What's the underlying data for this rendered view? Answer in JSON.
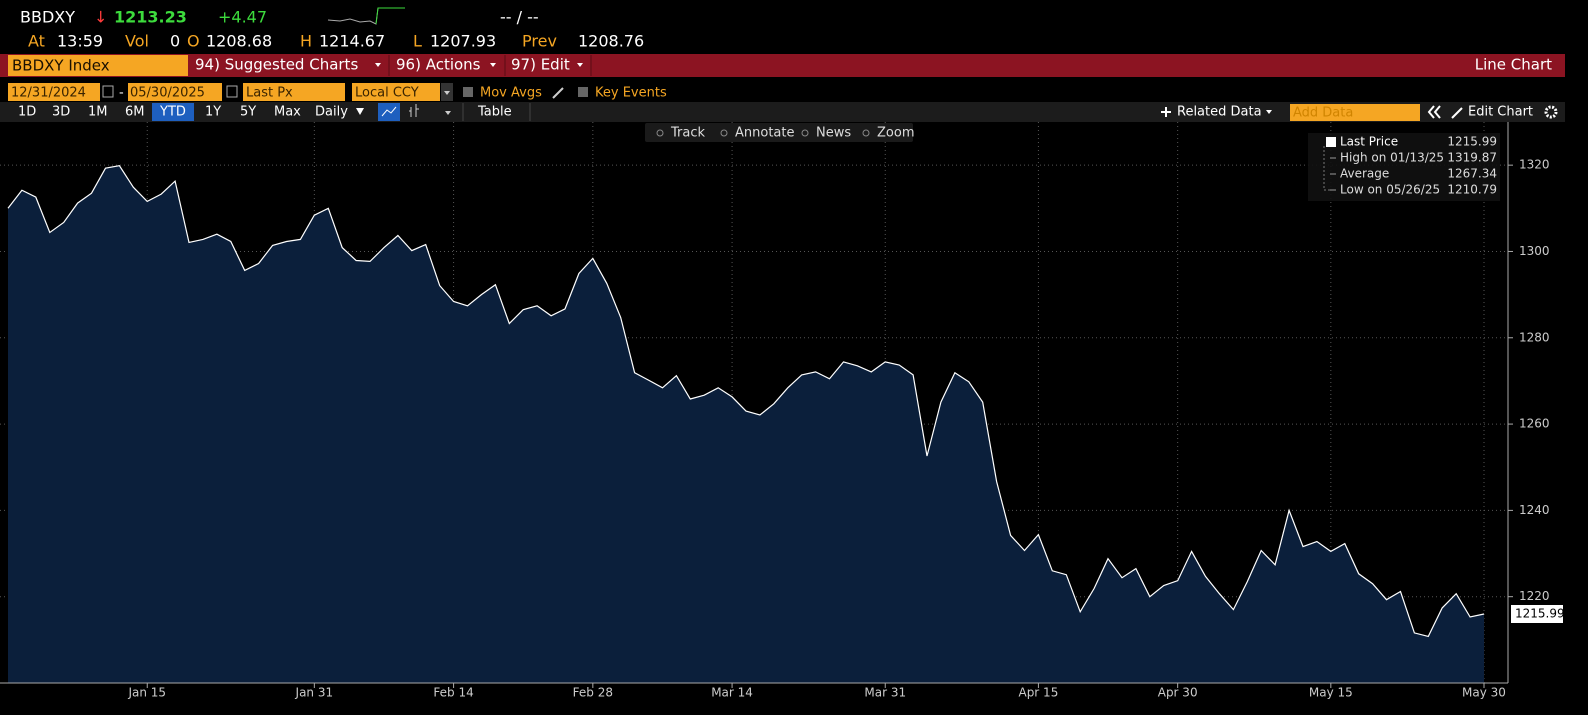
{
  "header": {
    "ticker": "BBDXY",
    "arrow": "↓",
    "last": "1213.23",
    "change": "+4.47",
    "bidask": "-- / --",
    "at_label": "At",
    "at": "13:59",
    "vol_label": "Vol",
    "vol": "0",
    "open_label": "O",
    "open": "1208.68",
    "high_label": "H",
    "high": "1214.67",
    "low_label": "L",
    "low": "1207.93",
    "prev_label": "Prev",
    "prev": "1208.76"
  },
  "menu": {
    "security": "BBDXY Index",
    "items": [
      "94) Suggested Charts",
      "96) Actions",
      "97) Edit"
    ],
    "view": "Line Chart"
  },
  "controls": {
    "start": "12/31/2024",
    "dash": "-",
    "end": "05/30/2025",
    "field": "Last Px",
    "currency": "Local CCY",
    "mov_avgs": "Mov Avgs",
    "key_events": "Key Events"
  },
  "toolbar": {
    "periods": [
      "1D",
      "3D",
      "1M",
      "6M",
      "YTD",
      "1Y",
      "5Y",
      "Max"
    ],
    "active_period": "YTD",
    "frequency": "Daily",
    "table": "Table",
    "related": "Related Data",
    "add_data": "Add Data",
    "edit_chart": "Edit Chart"
  },
  "tools": [
    "Track",
    "Annotate",
    "News",
    "Zoom"
  ],
  "chart_data": {
    "type": "area",
    "line_color": "#ffffff",
    "fill_color": "#0b1f3b",
    "grid": true,
    "legend_position": "top-right",
    "categories": [
      "",
      null,
      null,
      null,
      null,
      null,
      null,
      null,
      null,
      null,
      "Jan 15",
      null,
      null,
      null,
      null,
      null,
      null,
      null,
      null,
      null,
      null,
      null,
      "Jan 31",
      null,
      null,
      null,
      null,
      null,
      null,
      null,
      null,
      null,
      "Feb 14",
      null,
      null,
      null,
      null,
      null,
      null,
      null,
      null,
      null,
      "Feb 28",
      null,
      null,
      null,
      null,
      null,
      null,
      null,
      null,
      null,
      "Mar 14",
      null,
      null,
      null,
      null,
      null,
      null,
      null,
      null,
      null,
      null,
      "Mar 31",
      null,
      null,
      null,
      null,
      null,
      null,
      null,
      null,
      null,
      null,
      "Apr 15",
      null,
      null,
      null,
      null,
      null,
      null,
      null,
      null,
      null,
      "Apr 30",
      null,
      null,
      null,
      null,
      null,
      null,
      null,
      null,
      null,
      null,
      "May 15",
      null,
      null,
      null,
      null,
      null,
      null,
      null,
      null,
      null,
      null,
      "May 30"
    ],
    "values": [
      1310,
      1314.2,
      1312.6,
      1304.4,
      1306.7,
      1311.2,
      1313.5,
      1319.3,
      1319.87,
      1314.9,
      1311.6,
      1313.3,
      1316.3,
      1302.1,
      1302.8,
      1304,
      1302.3,
      1295.6,
      1297.2,
      1301.4,
      1302.3,
      1302.8,
      1308.4,
      1310,
      1300.9,
      1297.9,
      1297.7,
      1300.9,
      1303.7,
      1300.2,
      1301.6,
      1292.1,
      1288.4,
      1287.4,
      1290,
      1292.3,
      1283.3,
      1286.5,
      1287.4,
      1285.1,
      1286.7,
      1294.9,
      1298.4,
      1292.6,
      1284.7,
      1271.9,
      1270.2,
      1268.4,
      1271.2,
      1265.8,
      1266.7,
      1268.4,
      1266.3,
      1263,
      1262.1,
      1264.7,
      1268.4,
      1271.4,
      1272.1,
      1270.5,
      1274.4,
      1273.5,
      1272.1,
      1274.4,
      1273.7,
      1271.4,
      1252.6,
      1265.1,
      1271.9,
      1269.8,
      1265.1,
      1246.7,
      1234.2,
      1230.7,
      1234.4,
      1226,
      1225.1,
      1216.5,
      1221.9,
      1228.8,
      1224.4,
      1226.5,
      1220,
      1222.6,
      1223.7,
      1230.5,
      1224.7,
      1220.7,
      1217,
      1223.5,
      1230.7,
      1227.4,
      1240,
      1231.6,
      1232.8,
      1230.5,
      1232.3,
      1225.3,
      1223,
      1219.3,
      1221.2,
      1211.6,
      1210.79,
      1217.4,
      1220.7,
      1215.3,
      1215.99
    ],
    "ylim": [
      1200,
      1330
    ],
    "yticks": [
      1220,
      1240,
      1260,
      1280,
      1300,
      1320
    ],
    "legend": [
      {
        "label": "Last Price",
        "value": 1215.99
      },
      {
        "label": "High on 01/13/25",
        "value": 1319.87
      },
      {
        "label": "Average",
        "value": 1267.34
      },
      {
        "label": "Low on 05/26/25",
        "value": 1210.79
      }
    ]
  }
}
